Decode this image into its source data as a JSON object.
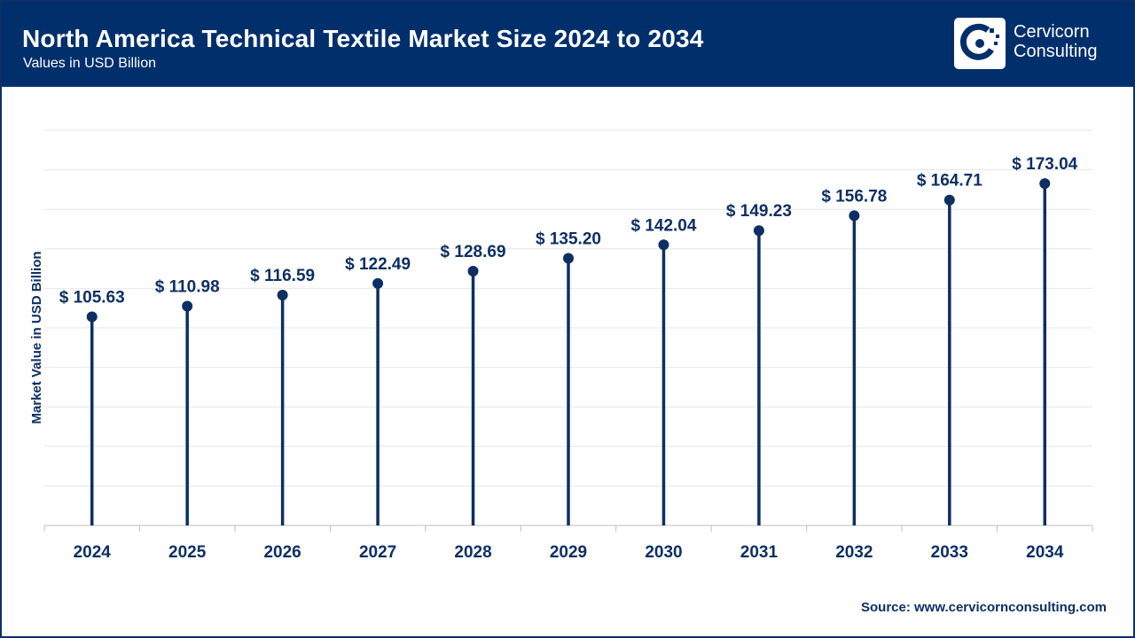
{
  "header": {
    "title": "North America Technical Textile Market Size 2024 to 2034",
    "subtitle": "Values in USD Billion"
  },
  "logo": {
    "line1": "Cervicorn",
    "line2": "Consulting",
    "icon": "cervicorn-logo-icon"
  },
  "footer": {
    "source": "Source: www.cervicornconsulting.com"
  },
  "colors": {
    "header_bg": "#002f6c",
    "series": "#0d2f63",
    "grid": "#e6e6e6"
  },
  "chart_data": {
    "type": "lollipop",
    "title": "North America Technical Textile Market Size 2024 to 2034",
    "subtitle": "Values in USD Billion",
    "xlabel": "",
    "ylabel": "Market Value in USD Billion",
    "categories": [
      "2024",
      "2025",
      "2026",
      "2027",
      "2028",
      "2029",
      "2030",
      "2031",
      "2032",
      "2033",
      "2034"
    ],
    "values": [
      105.63,
      110.98,
      116.59,
      122.49,
      128.69,
      135.2,
      142.04,
      149.23,
      156.78,
      164.71,
      173.04
    ],
    "data_labels": [
      "$ 105.63",
      "$ 110.98",
      "$ 116.59",
      "$ 122.49",
      "$ 128.69",
      "$ 135.20",
      "$ 142.04",
      "$ 149.23",
      "$ 156.78",
      "$ 164.71",
      "$ 173.04"
    ],
    "ylim": [
      0,
      200
    ],
    "y_tick_labels_shown": false,
    "grid": true,
    "legend": "none"
  }
}
